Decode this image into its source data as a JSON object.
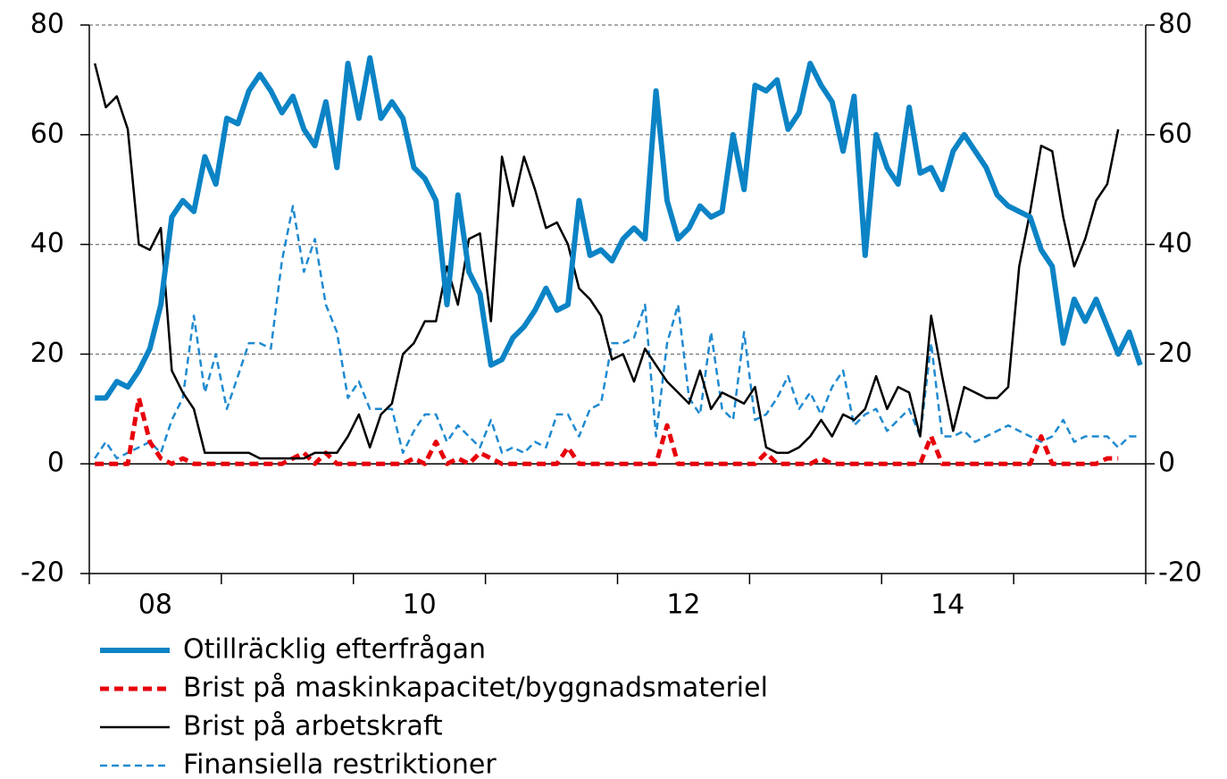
{
  "chart_data": {
    "type": "line",
    "categories": [
      null,
      null,
      null,
      null,
      null,
      null,
      "08",
      null,
      null,
      null,
      null,
      null,
      null,
      null,
      null,
      null,
      null,
      null,
      null,
      null,
      null,
      null,
      null,
      null,
      null,
      null,
      null,
      null,
      null,
      null,
      "10",
      null,
      null,
      null,
      null,
      null,
      null,
      null,
      null,
      null,
      null,
      null,
      null,
      null,
      null,
      null,
      null,
      null,
      null,
      null,
      null,
      null,
      null,
      null,
      "12",
      null,
      null,
      null,
      null,
      null,
      null,
      null,
      null,
      null,
      null,
      null,
      null,
      null,
      null,
      null,
      null,
      null,
      null,
      null,
      null,
      null,
      null,
      null,
      "14",
      null,
      null,
      null,
      null,
      null,
      null,
      null,
      null,
      null,
      null,
      null,
      null,
      null,
      null,
      null,
      null,
      null
    ],
    "series": [
      {
        "name": "Otillräcklig efterfrågan",
        "color": "#0b83c5",
        "style": "solid",
        "width": 6,
        "values": [
          12,
          12,
          15,
          14,
          17,
          21,
          29,
          45,
          48,
          46,
          56,
          51,
          63,
          62,
          68,
          71,
          68,
          64,
          67,
          61,
          58,
          66,
          54,
          73,
          63,
          74,
          63,
          66,
          63,
          54,
          52,
          48,
          29,
          49,
          35,
          31,
          18,
          19,
          23,
          25,
          28,
          32,
          28,
          29,
          48,
          38,
          39,
          37,
          41,
          43,
          41,
          68,
          48,
          41,
          43,
          47,
          45,
          46,
          60,
          50,
          69,
          68,
          70,
          61,
          64,
          73,
          69,
          66,
          57,
          67,
          38,
          60,
          54,
          51,
          65,
          53,
          54,
          50,
          57,
          60,
          57,
          54,
          49,
          47,
          46,
          45,
          39,
          36,
          22,
          30,
          26,
          30,
          25,
          20,
          24,
          18
        ]
      },
      {
        "name": "Brist på maskinkapacitet/byggnadsmateriel",
        "color": "#e8000b",
        "style": "dashed",
        "width": 5,
        "values": [
          0,
          0,
          0,
          0,
          12,
          4,
          1,
          0,
          1,
          0,
          0,
          0,
          0,
          0,
          0,
          0,
          0,
          0,
          1,
          2,
          0,
          2,
          0,
          0,
          0,
          0,
          0,
          0,
          0,
          1,
          0,
          4,
          0,
          1,
          0,
          2,
          1,
          0,
          0,
          0,
          0,
          0,
          0,
          3,
          0,
          0,
          0,
          0,
          0,
          0,
          0,
          0,
          7,
          0,
          0,
          0,
          0,
          0,
          0,
          0,
          0,
          2,
          0,
          0,
          0,
          0,
          1,
          0,
          0,
          0,
          0,
          0,
          0,
          0,
          0,
          0,
          5,
          0,
          0,
          0,
          0,
          0,
          0,
          0,
          0,
          0,
          5,
          0,
          0,
          0,
          0,
          0,
          1,
          1,
          null,
          null
        ]
      },
      {
        "name": "Brist på arbetskraft",
        "color": "#000000",
        "style": "solid",
        "width": 2.5,
        "values": [
          73,
          65,
          67,
          61,
          40,
          39,
          43,
          17,
          13,
          10,
          2,
          2,
          2,
          2,
          2,
          1,
          1,
          1,
          1,
          1,
          2,
          2,
          2,
          5,
          9,
          3,
          9,
          11,
          20,
          22,
          26,
          26,
          36,
          29,
          41,
          42,
          26,
          56,
          47,
          56,
          50,
          43,
          44,
          40,
          32,
          30,
          27,
          19,
          20,
          15,
          21,
          18,
          15,
          13,
          11,
          17,
          10,
          13,
          12,
          11,
          14,
          3,
          2,
          2,
          3,
          5,
          8,
          5,
          9,
          8,
          10,
          16,
          10,
          14,
          13,
          5,
          27,
          16,
          6,
          14,
          13,
          12,
          12,
          14,
          36,
          46,
          58,
          57,
          45,
          36,
          41,
          48,
          51,
          61,
          null,
          null
        ]
      },
      {
        "name": "Finansiella restriktioner",
        "color": "#1f8ad0",
        "style": "dashed",
        "width": 2.5,
        "values": [
          1,
          4,
          1,
          2,
          3,
          4,
          2,
          8,
          12,
          27,
          13,
          20,
          10,
          16,
          22,
          22,
          21,
          37,
          47,
          35,
          41,
          29,
          24,
          12,
          15,
          10,
          10,
          10,
          2,
          6,
          9,
          9,
          4,
          7,
          5,
          3,
          8,
          2,
          3,
          2,
          4,
          3,
          9,
          9,
          5,
          10,
          11,
          22,
          22,
          23,
          29,
          5,
          22,
          29,
          12,
          9,
          24,
          10,
          8,
          24,
          8,
          9,
          12,
          16,
          10,
          13,
          9,
          14,
          17,
          7,
          9,
          10,
          6,
          8,
          10,
          5,
          22,
          5,
          5,
          6,
          4,
          5,
          6,
          7,
          6,
          5,
          4,
          5,
          8,
          4,
          5,
          5,
          5,
          3,
          5,
          5
        ]
      }
    ],
    "ylim": [
      -20,
      80
    ],
    "yticks": [
      -20,
      0,
      20,
      40,
      60,
      80
    ],
    "y2lim": [
      -20,
      80
    ],
    "y2ticks": [
      -20,
      0,
      20,
      40,
      60,
      80
    ],
    "grid": true,
    "legend": "bottom"
  }
}
